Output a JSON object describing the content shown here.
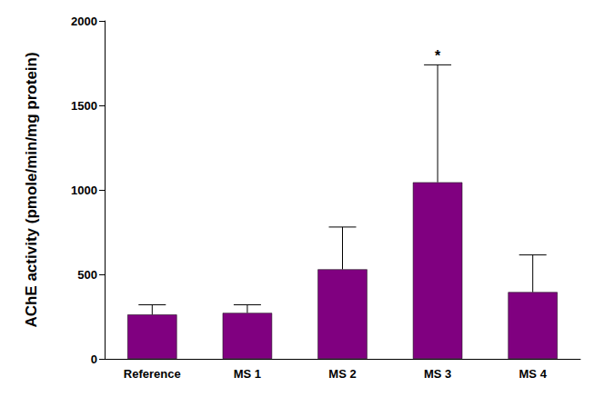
{
  "chart_data": {
    "type": "bar",
    "y_label": "AChE activity (pmole/min/mg protein)",
    "categories": [
      "Reference",
      "MS 1",
      "MS 2",
      "MS 3",
      "MS 4"
    ],
    "values": [
      262,
      272,
      530,
      1045,
      395
    ],
    "errors": [
      58,
      48,
      250,
      695,
      220
    ],
    "color": "#800080",
    "ylim": [
      0,
      2000
    ],
    "yticks": [
      0,
      500,
      1000,
      1500,
      2000
    ],
    "grid": false,
    "annotations": [
      {
        "text": "*",
        "category": "MS 3"
      }
    ]
  }
}
